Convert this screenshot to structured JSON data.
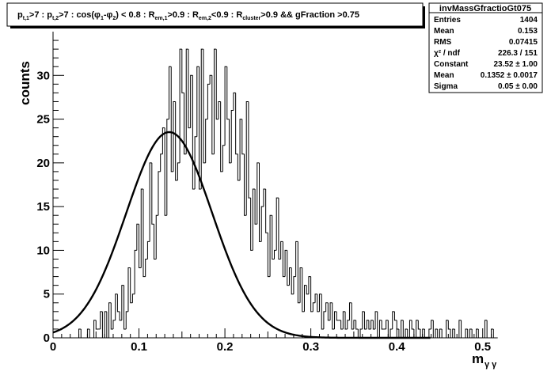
{
  "chart_data": {
    "type": "histogram",
    "title": "p_{t,1}>7 : p_{t,2}>7 : cos(φ_1-φ_2) < 0.8 : R_{em,1}>0.9 : R_{em,2}<0.9 : R_{cluster}>0.9 && gFraction >0.75",
    "title_parts": [
      {
        "t": "p",
        "s": "n"
      },
      {
        "t": "t,1",
        "s": "sub"
      },
      {
        "t": ">7 : p",
        "s": "n"
      },
      {
        "t": "t,2",
        "s": "sub"
      },
      {
        "t": ">7 : cos(φ",
        "s": "n"
      },
      {
        "t": "1",
        "s": "sub"
      },
      {
        "t": "-φ",
        "s": "n"
      },
      {
        "t": "2",
        "s": "sub"
      },
      {
        "t": ") < 0.8 : R",
        "s": "n"
      },
      {
        "t": "em,1",
        "s": "sub"
      },
      {
        "t": ">0.9 : R",
        "s": "n"
      },
      {
        "t": "em,2",
        "s": "sub"
      },
      {
        "t": "<0.9 : R",
        "s": "n"
      },
      {
        "t": "cluster",
        "s": "sub"
      },
      {
        "t": ">0.9 && gFraction >0.75",
        "s": "n"
      }
    ],
    "xlabel": "m",
    "xlabel_sub": "γ γ",
    "ylabel": "counts",
    "xlim": [
      0,
      0.515
    ],
    "ylim": [
      0,
      35
    ],
    "xticks": [
      0,
      0.1,
      0.2,
      0.3,
      0.4,
      0.5
    ],
    "xtick_labels": [
      "0",
      "0.1",
      "0.2",
      "0.3",
      "0.4",
      "0.5"
    ],
    "yticks": [
      0,
      5,
      10,
      15,
      20,
      25,
      30
    ],
    "ytick_labels": [
      "0",
      "5",
      "10",
      "15",
      "20",
      "25",
      "30"
    ],
    "grid": false,
    "bin_width": 0.0025,
    "bin_start": 0.0,
    "counts": [
      0,
      0,
      0,
      0,
      0,
      0,
      0,
      0,
      0,
      0,
      0,
      0,
      1,
      0,
      0,
      0,
      1,
      0,
      0,
      2,
      1,
      1,
      3,
      0,
      3,
      0,
      4,
      1,
      2,
      5,
      3,
      2,
      6,
      1,
      3,
      8,
      4,
      5,
      10,
      13,
      8,
      17,
      7,
      9,
      11,
      20,
      13,
      9,
      14,
      19,
      21,
      24,
      14,
      25,
      31,
      19,
      27,
      18,
      20,
      33,
      28,
      21,
      33,
      24,
      30,
      17,
      23,
      31,
      17,
      33,
      20,
      25,
      29,
      30,
      21,
      33,
      25,
      27,
      19,
      22,
      31,
      25,
      20,
      26,
      28,
      21,
      18,
      25,
      21,
      14,
      27,
      16,
      10,
      17,
      13,
      20,
      11,
      15,
      17,
      12,
      7,
      14,
      9,
      10,
      16,
      9,
      11,
      7,
      10,
      6,
      8,
      5,
      7,
      11,
      4,
      8,
      3,
      6,
      5,
      7,
      3,
      4,
      5,
      3,
      5,
      1,
      3,
      4,
      2,
      4,
      1,
      3,
      2,
      2,
      1,
      3,
      1,
      2,
      4,
      1,
      2,
      1,
      0,
      1,
      3,
      1,
      2,
      1,
      2,
      1,
      3,
      0,
      2,
      1,
      1,
      2,
      0,
      1,
      3,
      2,
      1,
      0,
      2,
      0,
      1,
      0,
      2,
      1,
      0,
      2,
      1,
      0,
      1,
      0,
      0,
      1,
      2,
      0,
      1,
      0,
      1,
      0,
      0,
      2,
      1,
      0,
      1,
      0,
      0,
      2,
      0,
      0,
      1,
      0,
      1,
      0,
      0,
      1,
      0,
      0,
      0,
      2,
      0,
      0,
      1,
      0,
      0
    ],
    "fit": {
      "function": "gaussian",
      "constant": 23.52,
      "mean": 0.1352,
      "sigma": 0.05
    },
    "stats": {
      "name": "invMassGfractioGt075",
      "rows": [
        {
          "label": "Entries",
          "value": "1404"
        },
        {
          "label": "Mean",
          "value": "0.153"
        },
        {
          "label": "RMS",
          "value": "0.07415"
        },
        {
          "label": "χ² / ndf",
          "value": "226.3 / 151"
        },
        {
          "label": "Constant",
          "value": "23.52 ± 1.00"
        },
        {
          "label": "Mean",
          "value": "0.1352 ± 0.0017"
        },
        {
          "label": "Sigma",
          "value": "0.05 ± 0.00"
        }
      ]
    }
  }
}
